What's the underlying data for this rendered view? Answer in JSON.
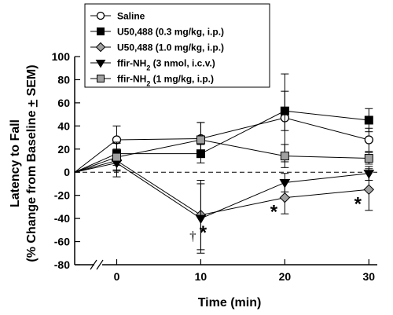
{
  "chart_data": {
    "type": "line",
    "xlabel": "Time (min)",
    "ylabel_line1": "Latency to Fall",
    "ylabel_line2": "(% Change from Baseline + SEM)",
    "x_ticks": [
      0,
      10,
      20,
      30
    ],
    "y_ticks": [
      -80,
      -60,
      -40,
      -20,
      0,
      20,
      40,
      60,
      80,
      100
    ],
    "xlim": [
      -5,
      31
    ],
    "ylim": [
      -80,
      100
    ],
    "axis_break": "x",
    "baseline_line": 0,
    "baseline_x": -5,
    "legend_position": "top-left",
    "series": [
      {
        "name": "Saline",
        "marker": "circle-open",
        "fill": "#ffffff",
        "x": [
          0,
          10,
          20,
          30
        ],
        "y": [
          28,
          29,
          47,
          28
        ],
        "err": [
          12,
          14,
          38,
          10
        ],
        "err_dir": "both"
      },
      {
        "name": "U50,488 (0.3 mg/kg, i.p.)",
        "marker": "square",
        "fill": "#000000",
        "x": [
          0,
          10,
          20,
          30
        ],
        "y": [
          16,
          16,
          53,
          45
        ],
        "err": [
          10,
          8,
          17,
          10
        ],
        "err_dir": "both"
      },
      {
        "name": "U50,488 (1.0 mg/kg, i.p.)",
        "marker": "diamond",
        "fill": "#a0a0a0",
        "x": [
          0,
          10,
          20,
          30
        ],
        "y": [
          10,
          -37,
          -22,
          -15
        ],
        "err": [
          8,
          30,
          14,
          18
        ],
        "err_dir": "both"
      },
      {
        "name_base": "ffir-NH",
        "name_sub": "2",
        "name_rest": " (3 nmol, i.c.v.)",
        "marker": "triangle-down",
        "fill": "#000000",
        "x": [
          0,
          10,
          20,
          30
        ],
        "y": [
          8,
          -40,
          -9,
          -1
        ],
        "err": [
          12,
          30,
          8,
          6
        ],
        "err_dir": "both"
      },
      {
        "name_base": "ffir-NH",
        "name_sub": "2",
        "name_rest": " (1 mg/kg, i.p.)",
        "marker": "square",
        "fill": "#a0a0a0",
        "x": [
          0,
          10,
          20,
          30
        ],
        "y": [
          13,
          28,
          14,
          12
        ],
        "err": [
          12,
          15,
          10,
          5
        ],
        "err_dir": "both"
      }
    ],
    "annotations": [
      {
        "text": "*",
        "x": 10,
        "y": -40,
        "kind": "star"
      },
      {
        "text": "†",
        "x": 10,
        "y": -40,
        "kind": "dagger"
      },
      {
        "text": "*",
        "x": 20,
        "y": -22,
        "kind": "star"
      },
      {
        "text": "*",
        "x": 30,
        "y": -15,
        "kind": "star"
      }
    ]
  }
}
